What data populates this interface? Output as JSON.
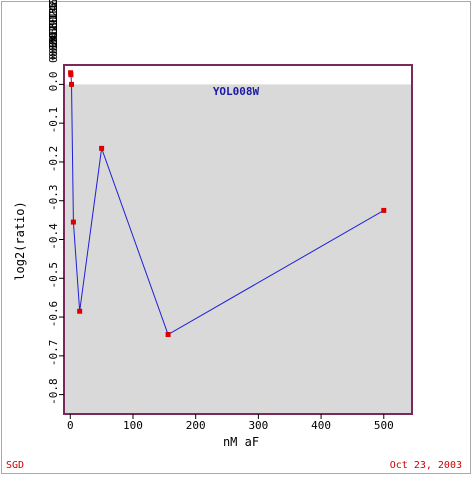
{
  "chart_data": {
    "type": "line",
    "title": "YOL008W",
    "xlabel": "nM aF",
    "ylabel": "log2(ratio)",
    "xlim": [
      -10,
      545
    ],
    "ylim": [
      -0.85,
      0.05
    ],
    "x_ticks": [
      0,
      100,
      200,
      300,
      400,
      500
    ],
    "y_ticks": [
      {
        "value": -0.8,
        "label": "-0.8"
      },
      {
        "value": -0.7,
        "label": "-0.7"
      },
      {
        "value": -0.6,
        "label": "-0.6"
      },
      {
        "value": -0.5,
        "label": "-0.5"
      },
      {
        "value": -0.4,
        "label": "-0.4"
      },
      {
        "value": -0.3,
        "label": "-0.3"
      },
      {
        "value": -0.2,
        "label": "-0.2"
      },
      {
        "value": -0.1,
        "label": "-0.1"
      },
      {
        "value": 0.0,
        "label": "0.0"
      }
    ],
    "overflow_tick_labels": [
      "0.1",
      "0.2",
      "0.3",
      "0.4",
      "0.5",
      "0.6",
      "0.7",
      "0.8",
      "0.9",
      "1.0",
      "1.1",
      "1.2",
      "1.3",
      "1.4",
      "1.5",
      "1.6",
      "1.7",
      "1.8",
      "1.9",
      "2.0"
    ],
    "shaded_band": {
      "from": -0.85,
      "to": 0.0,
      "color": "#d9d9d9"
    },
    "grid": false,
    "series": [
      {
        "x": [
          0.5,
          1,
          2,
          5,
          15,
          50,
          156,
          500
        ],
        "y": [
          0.03,
          0.025,
          0.0,
          -0.355,
          -0.585,
          -0.165,
          -0.645,
          -0.325
        ]
      }
    ],
    "line_color": "#1f1fd6",
    "marker_color": "#dd0000",
    "frame_color": "#7a2a5a"
  },
  "footer": {
    "left": "SGD",
    "right": "Oct 23, 2003"
  }
}
